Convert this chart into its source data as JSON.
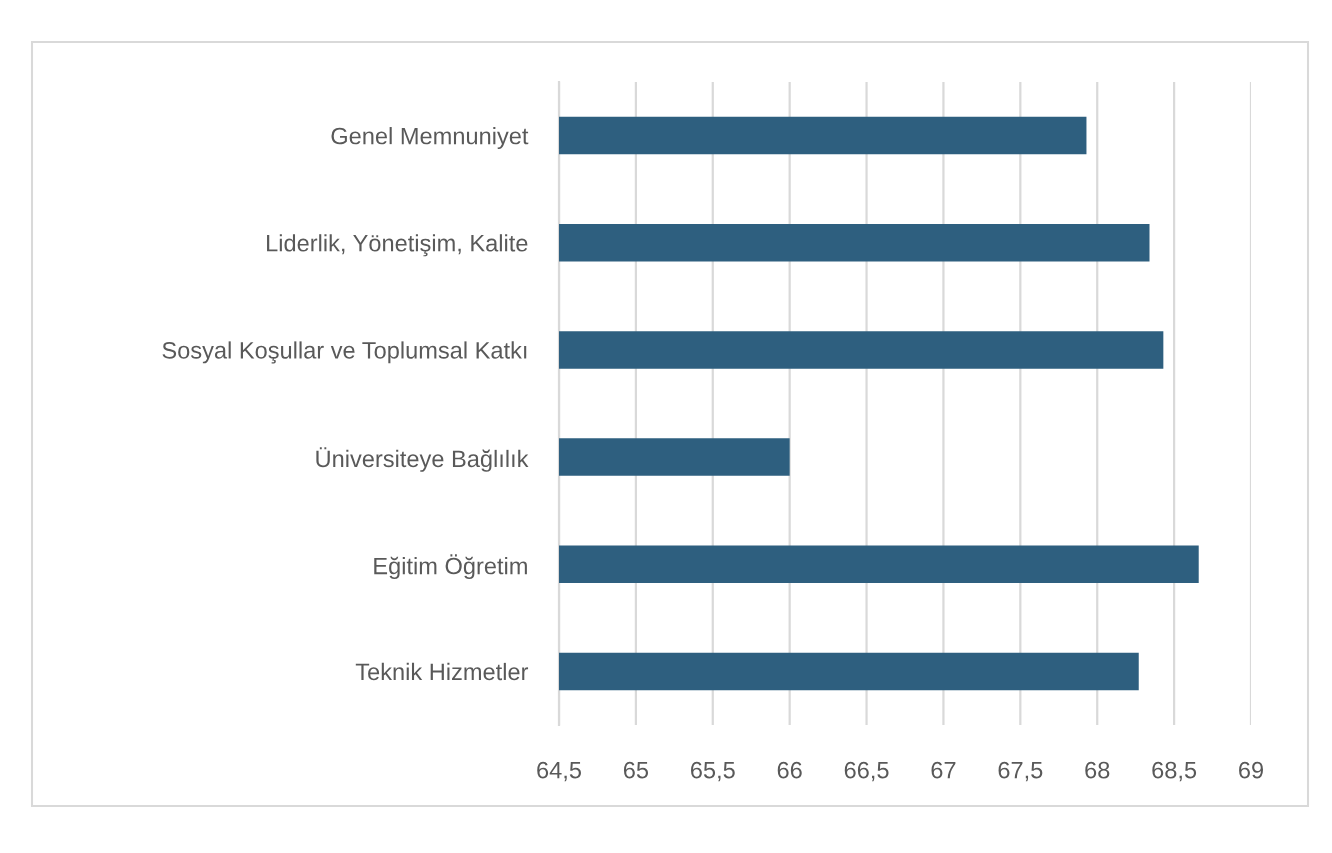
{
  "chart_data": {
    "type": "bar",
    "orientation": "horizontal",
    "categories": [
      "Genel Memnuniyet",
      "Liderlik, Yönetişim, Kalite",
      "Sosyal Koşullar ve Toplumsal Katkı",
      "Üniversiteye Bağlılık",
      "Eğitim Öğretim",
      "Teknik Hizmetler"
    ],
    "values": [
      67.93,
      68.34,
      68.43,
      66.0,
      68.66,
      68.27
    ],
    "color": "#2e5f7f",
    "xlim": [
      64.5,
      69
    ],
    "xticks": [
      {
        "value": 64.5,
        "label": "64,5"
      },
      65,
      {
        "value": 65.5,
        "label": "65,5"
      },
      66,
      {
        "value": 66.5,
        "label": "66,5"
      },
      67,
      {
        "value": 67.5,
        "label": "67,5"
      },
      68,
      {
        "value": 68.5,
        "label": "68,5"
      },
      69
    ],
    "grid": "x"
  }
}
